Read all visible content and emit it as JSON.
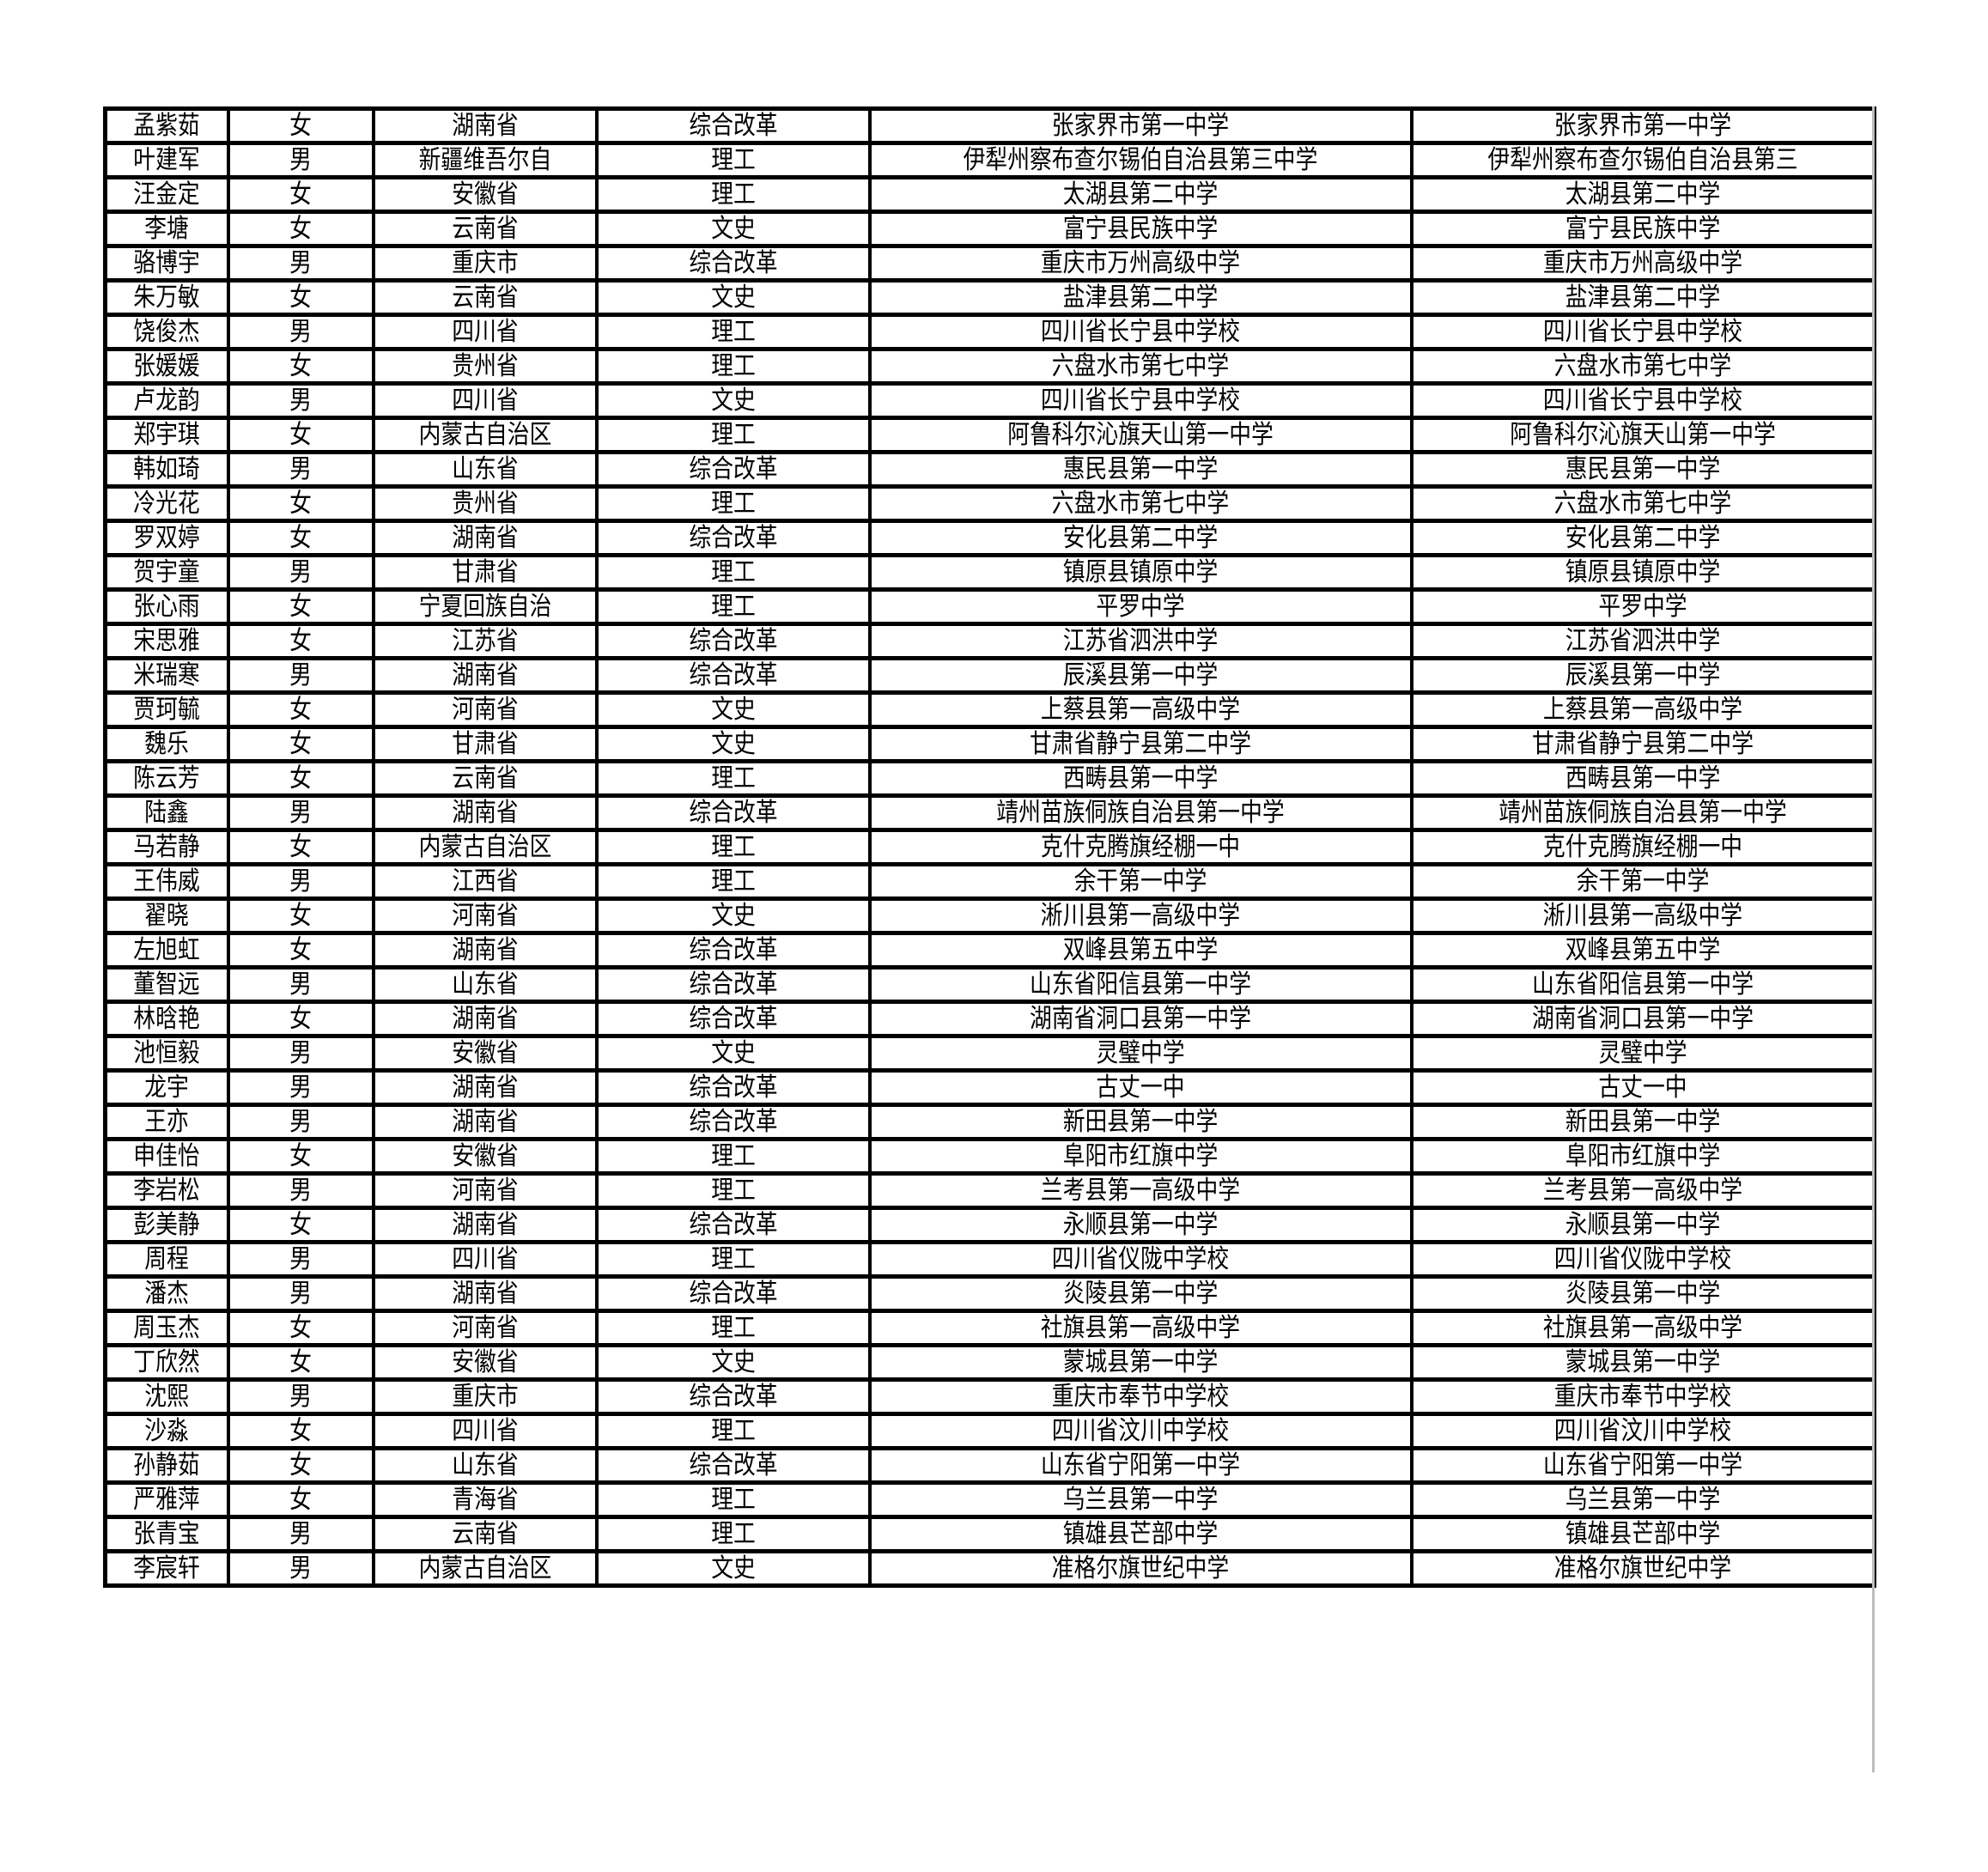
{
  "rows": [
    [
      "孟紫茹",
      "女",
      "湖南省",
      "综合改革",
      "张家界市第一中学",
      "张家界市第一中学"
    ],
    [
      "叶建军",
      "男",
      "新疆维吾尔自",
      "理工",
      "伊犁州察布查尔锡伯自治县第三中学",
      "伊犁州察布查尔锡伯自治县第三"
    ],
    [
      "汪金定",
      "女",
      "安徽省",
      "理工",
      "太湖县第二中学",
      "太湖县第二中学"
    ],
    [
      "李塘",
      "女",
      "云南省",
      "文史",
      "富宁县民族中学",
      "富宁县民族中学"
    ],
    [
      "骆博宇",
      "男",
      "重庆市",
      "综合改革",
      "重庆市万州高级中学",
      "重庆市万州高级中学"
    ],
    [
      "朱万敏",
      "女",
      "云南省",
      "文史",
      "盐津县第二中学",
      "盐津县第二中学"
    ],
    [
      "饶俊杰",
      "男",
      "四川省",
      "理工",
      "四川省长宁县中学校",
      "四川省长宁县中学校"
    ],
    [
      "张媛媛",
      "女",
      "贵州省",
      "理工",
      "六盘水市第七中学",
      "六盘水市第七中学"
    ],
    [
      "卢龙韵",
      "男",
      "四川省",
      "文史",
      "四川省长宁县中学校",
      "四川省长宁县中学校"
    ],
    [
      "郑宇琪",
      "女",
      "内蒙古自治区",
      "理工",
      "阿鲁科尔沁旗天山第一中学",
      "阿鲁科尔沁旗天山第一中学"
    ],
    [
      "韩如琦",
      "男",
      "山东省",
      "综合改革",
      "惠民县第一中学",
      "惠民县第一中学"
    ],
    [
      "冷光花",
      "女",
      "贵州省",
      "理工",
      "六盘水市第七中学",
      "六盘水市第七中学"
    ],
    [
      "罗双婷",
      "女",
      "湖南省",
      "综合改革",
      "安化县第二中学",
      "安化县第二中学"
    ],
    [
      "贺宇童",
      "男",
      "甘肃省",
      "理工",
      "镇原县镇原中学",
      "镇原县镇原中学"
    ],
    [
      "张心雨",
      "女",
      "宁夏回族自治",
      "理工",
      "平罗中学",
      "平罗中学"
    ],
    [
      "宋思雅",
      "女",
      "江苏省",
      "综合改革",
      "江苏省泗洪中学",
      "江苏省泗洪中学"
    ],
    [
      "米瑞寒",
      "男",
      "湖南省",
      "综合改革",
      "辰溪县第一中学",
      "辰溪县第一中学"
    ],
    [
      "贾珂毓",
      "女",
      "河南省",
      "文史",
      "上蔡县第一高级中学",
      "上蔡县第一高级中学"
    ],
    [
      "魏乐",
      "女",
      "甘肃省",
      "文史",
      "甘肃省静宁县第二中学",
      "甘肃省静宁县第二中学"
    ],
    [
      "陈云芳",
      "女",
      "云南省",
      "理工",
      "西畴县第一中学",
      "西畴县第一中学"
    ],
    [
      "陆鑫",
      "男",
      "湖南省",
      "综合改革",
      "靖州苗族侗族自治县第一中学",
      "靖州苗族侗族自治县第一中学"
    ],
    [
      "马若静",
      "女",
      "内蒙古自治区",
      "理工",
      "克什克腾旗经棚一中",
      "克什克腾旗经棚一中"
    ],
    [
      "王伟威",
      "男",
      "江西省",
      "理工",
      "余干第一中学",
      "余干第一中学"
    ],
    [
      "翟晓",
      "女",
      "河南省",
      "文史",
      "淅川县第一高级中学",
      "淅川县第一高级中学"
    ],
    [
      "左旭虹",
      "女",
      "湖南省",
      "综合改革",
      "双峰县第五中学",
      "双峰县第五中学"
    ],
    [
      "董智远",
      "男",
      "山东省",
      "综合改革",
      "山东省阳信县第一中学",
      "山东省阳信县第一中学"
    ],
    [
      "林晗艳",
      "女",
      "湖南省",
      "综合改革",
      "湖南省洞口县第一中学",
      "湖南省洞口县第一中学"
    ],
    [
      "池恒毅",
      "男",
      "安徽省",
      "文史",
      "灵璧中学",
      "灵璧中学"
    ],
    [
      "龙宇",
      "男",
      "湖南省",
      "综合改革",
      "古丈一中",
      "古丈一中"
    ],
    [
      "王亦",
      "男",
      "湖南省",
      "综合改革",
      "新田县第一中学",
      "新田县第一中学"
    ],
    [
      "申佳怡",
      "女",
      "安徽省",
      "理工",
      "阜阳市红旗中学",
      "阜阳市红旗中学"
    ],
    [
      "李岩松",
      "男",
      "河南省",
      "理工",
      "兰考县第一高级中学",
      "兰考县第一高级中学"
    ],
    [
      "彭美静",
      "女",
      "湖南省",
      "综合改革",
      "永顺县第一中学",
      "永顺县第一中学"
    ],
    [
      "周程",
      "男",
      "四川省",
      "理工",
      "四川省仪陇中学校",
      "四川省仪陇中学校"
    ],
    [
      "潘杰",
      "男",
      "湖南省",
      "综合改革",
      "炎陵县第一中学",
      "炎陵县第一中学"
    ],
    [
      "周玉杰",
      "女",
      "河南省",
      "理工",
      "社旗县第一高级中学",
      "社旗县第一高级中学"
    ],
    [
      "丁欣然",
      "女",
      "安徽省",
      "文史",
      "蒙城县第一中学",
      "蒙城县第一中学"
    ],
    [
      "沈熙",
      "男",
      "重庆市",
      "综合改革",
      "重庆市奉节中学校",
      "重庆市奉节中学校"
    ],
    [
      "沙淼",
      "女",
      "四川省",
      "理工",
      "四川省汶川中学校",
      "四川省汶川中学校"
    ],
    [
      "孙静茹",
      "女",
      "山东省",
      "综合改革",
      "山东省宁阳第一中学",
      "山东省宁阳第一中学"
    ],
    [
      "严雅萍",
      "女",
      "青海省",
      "理工",
      "乌兰县第一中学",
      "乌兰县第一中学"
    ],
    [
      "张青宝",
      "男",
      "云南省",
      "理工",
      "镇雄县芒部中学",
      "镇雄县芒部中学"
    ],
    [
      "李宸轩",
      "男",
      "内蒙古自治区",
      "文史",
      "准格尔旗世纪中学",
      "准格尔旗世纪中学"
    ]
  ]
}
